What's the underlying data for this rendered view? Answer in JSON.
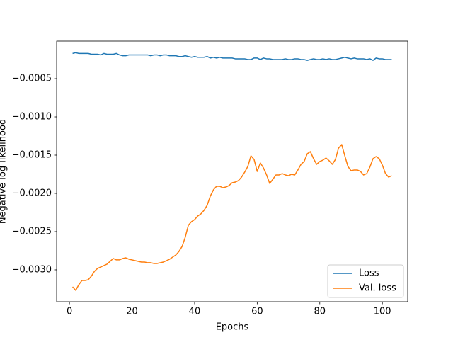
{
  "chart_data": {
    "type": "line",
    "xlabel": "Epochs",
    "ylabel": "Negative log likelihood",
    "x": [
      1,
      2,
      3,
      4,
      5,
      6,
      7,
      8,
      9,
      10,
      11,
      12,
      13,
      14,
      15,
      16,
      17,
      18,
      19,
      20,
      21,
      22,
      23,
      24,
      25,
      26,
      27,
      28,
      29,
      30,
      31,
      32,
      33,
      34,
      35,
      36,
      37,
      38,
      39,
      40,
      41,
      42,
      43,
      44,
      45,
      46,
      47,
      48,
      49,
      50,
      51,
      52,
      53,
      54,
      55,
      56,
      57,
      58,
      59,
      60,
      61,
      62,
      63,
      64,
      65,
      66,
      67,
      68,
      69,
      70,
      71,
      72,
      73,
      74,
      75,
      76,
      77,
      78,
      79,
      80,
      81,
      82,
      83,
      84,
      85,
      86,
      87,
      88,
      89,
      90,
      91,
      92,
      93,
      94,
      95,
      96,
      97,
      98,
      99,
      100,
      101,
      102,
      103
    ],
    "series": [
      {
        "name": "Loss",
        "color": "#1f77b4",
        "values": [
          -0.00017,
          -0.00016,
          -0.00017,
          -0.00017,
          -0.00017,
          -0.00017,
          -0.00018,
          -0.00018,
          -0.00018,
          -0.00019,
          -0.00017,
          -0.00018,
          -0.00018,
          -0.00018,
          -0.00017,
          -0.00019,
          -0.0002,
          -0.0002,
          -0.00019,
          -0.00019,
          -0.00019,
          -0.00019,
          -0.00019,
          -0.00019,
          -0.00019,
          -0.0002,
          -0.00019,
          -0.00019,
          -0.0002,
          -0.00019,
          -0.00019,
          -0.0002,
          -0.0002,
          -0.0002,
          -0.00021,
          -0.00021,
          -0.0002,
          -0.00021,
          -0.00022,
          -0.00021,
          -0.00022,
          -0.00022,
          -0.00022,
          -0.00021,
          -0.00023,
          -0.00022,
          -0.00023,
          -0.00022,
          -0.00023,
          -0.00023,
          -0.00023,
          -0.00023,
          -0.00024,
          -0.00024,
          -0.00024,
          -0.00024,
          -0.00025,
          -0.00025,
          -0.00023,
          -0.00023,
          -0.00025,
          -0.00023,
          -0.00024,
          -0.00024,
          -0.00025,
          -0.00025,
          -0.00025,
          -0.00025,
          -0.00024,
          -0.00025,
          -0.00025,
          -0.00024,
          -0.00024,
          -0.00025,
          -0.00025,
          -0.00026,
          -0.00025,
          -0.00024,
          -0.00025,
          -0.00025,
          -0.00024,
          -0.00025,
          -0.00024,
          -0.00025,
          -0.00025,
          -0.00024,
          -0.00023,
          -0.00022,
          -0.00023,
          -0.00024,
          -0.00023,
          -0.00024,
          -0.00024,
          -0.00024,
          -0.00025,
          -0.00024,
          -0.00026,
          -0.00023,
          -0.00024,
          -0.00024,
          -0.00025,
          -0.00025,
          -0.00025
        ]
      },
      {
        "name": "Val. loss",
        "color": "#ff7f0e",
        "values": [
          -0.003222,
          -0.003269,
          -0.003194,
          -0.003139,
          -0.003139,
          -0.00313,
          -0.003083,
          -0.003019,
          -0.002981,
          -0.002963,
          -0.002944,
          -0.002926,
          -0.002889,
          -0.002852,
          -0.00287,
          -0.00287,
          -0.002852,
          -0.002843,
          -0.002861,
          -0.00287,
          -0.00288,
          -0.002889,
          -0.002898,
          -0.002898,
          -0.002907,
          -0.002907,
          -0.002917,
          -0.002917,
          -0.002907,
          -0.002898,
          -0.00288,
          -0.002861,
          -0.002833,
          -0.002806,
          -0.002759,
          -0.002694,
          -0.002574,
          -0.002417,
          -0.00237,
          -0.002343,
          -0.002296,
          -0.002269,
          -0.002222,
          -0.002157,
          -0.002037,
          -0.001954,
          -0.001907,
          -0.001907,
          -0.001926,
          -0.001917,
          -0.001898,
          -0.001861,
          -0.001852,
          -0.001833,
          -0.001787,
          -0.001722,
          -0.001648,
          -0.001509,
          -0.001556,
          -0.001713,
          -0.001602,
          -0.001667,
          -0.001759,
          -0.00187,
          -0.001815,
          -0.001759,
          -0.001759,
          -0.001741,
          -0.001759,
          -0.001769,
          -0.00175,
          -0.001759,
          -0.001694,
          -0.00162,
          -0.001583,
          -0.001481,
          -0.001454,
          -0.001546,
          -0.00162,
          -0.001583,
          -0.001565,
          -0.001537,
          -0.001574,
          -0.00162,
          -0.001556,
          -0.001407,
          -0.001361,
          -0.001509,
          -0.001648,
          -0.001704,
          -0.001694,
          -0.001694,
          -0.001713,
          -0.001759,
          -0.001741,
          -0.001657,
          -0.001546,
          -0.001519,
          -0.001546,
          -0.00163,
          -0.001741,
          -0.001787,
          -0.001769
        ]
      }
    ],
    "xlim": [
      -4.1,
      108.1
    ],
    "ylim": [
      -0.003417,
      -9e-06
    ],
    "xticks": [
      0,
      20,
      40,
      60,
      80,
      100
    ],
    "yticks": [
      {
        "value": -0.003,
        "label": "−0.0030"
      },
      {
        "value": -0.0025,
        "label": "−0.0025"
      },
      {
        "value": -0.002,
        "label": "−0.0020"
      },
      {
        "value": -0.0015,
        "label": "−0.0015"
      },
      {
        "value": -0.001,
        "label": "−0.0010"
      },
      {
        "value": -0.0005,
        "label": "−0.0005"
      }
    ],
    "legend": "lower right",
    "grid": false
  }
}
